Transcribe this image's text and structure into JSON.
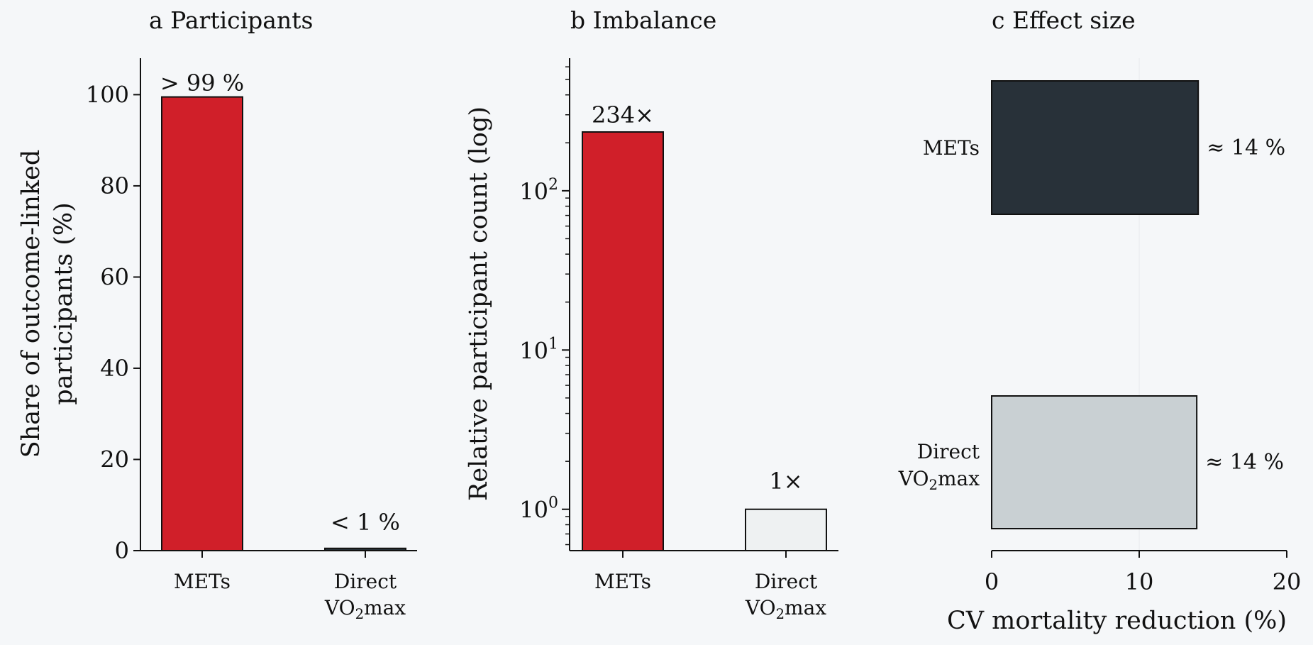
{
  "colors": {
    "background": "#f5f7f9",
    "mets_red": "#d01f29",
    "direct_light": "#eef1f2",
    "mets_dark": "#283139",
    "direct_grey": "#c9d0d3",
    "axis": "#111111"
  },
  "chart_data": [
    {
      "id": "a",
      "type": "bar",
      "panel_letter": "a",
      "title": "Participants",
      "ylabel_lines": [
        "Share of outcome-linked",
        "participants (%)"
      ],
      "categories": [
        {
          "lines": [
            "METs"
          ]
        },
        {
          "lines": [
            "Direct",
            "VO",
            "2",
            "max"
          ]
        }
      ],
      "values": [
        99.5,
        0.5
      ],
      "bar_labels": [
        "> 99 %",
        "< 1 %"
      ],
      "bar_colors": [
        "#d01f29",
        "#283139"
      ],
      "ylim": [
        0,
        108
      ],
      "yticks": [
        0,
        20,
        40,
        60,
        80,
        100
      ]
    },
    {
      "id": "b",
      "type": "bar",
      "panel_letter": "b",
      "title": "Imbalance",
      "yscale": "log",
      "ylabel": "Relative participant count (log)",
      "categories": [
        {
          "lines": [
            "METs"
          ]
        },
        {
          "lines": [
            "Direct",
            "VO",
            "2",
            "max"
          ]
        }
      ],
      "values": [
        234,
        1
      ],
      "bar_labels": [
        "234×",
        "1×"
      ],
      "bar_colors": [
        "#d01f29",
        "#eef1f2"
      ],
      "ylim": [
        0.55,
        680
      ],
      "ytick_labels": [
        {
          "value": 1,
          "base": "10",
          "exp": "0"
        },
        {
          "value": 10,
          "base": "10",
          "exp": "1"
        },
        {
          "value": 100,
          "base": "10",
          "exp": "2"
        }
      ]
    },
    {
      "id": "c",
      "type": "bar",
      "orientation": "horizontal",
      "panel_letter": "c",
      "title": "Effect size",
      "xlabel": "CV mortality reduction (%)",
      "categories": [
        {
          "lines": [
            "METs"
          ]
        },
        {
          "lines": [
            "Direct",
            "VO",
            "2",
            "max"
          ]
        }
      ],
      "values": [
        14,
        13.9
      ],
      "bar_labels": [
        "≈ 14 %",
        "≈ 14 %"
      ],
      "bar_colors": [
        "#283139",
        "#c9d0d3"
      ],
      "xlim": [
        0,
        20
      ],
      "xticks": [
        0,
        10,
        20
      ]
    }
  ]
}
